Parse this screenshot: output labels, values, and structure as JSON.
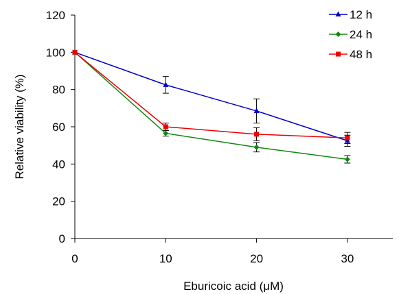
{
  "chart_data": {
    "type": "line",
    "title": "",
    "xlabel": "Eburicoic acid (μM)",
    "ylabel": "Relative viability (%)",
    "x": [
      0,
      10,
      20,
      30
    ],
    "xticks": [
      "0",
      "10",
      "20",
      "30"
    ],
    "xlim": [
      0,
      35
    ],
    "ylim": [
      0,
      120
    ],
    "yticks": [
      "0",
      "20",
      "40",
      "60",
      "80",
      "100",
      "120"
    ],
    "grid": false,
    "legend": "top-right",
    "error_bars": true,
    "series": [
      {
        "name": "12 h",
        "color": "#0000cc",
        "marker": "triangle",
        "values": [
          100,
          82.5,
          68.5,
          52.5
        ],
        "errors": [
          0,
          4.5,
          6.5,
          3
        ]
      },
      {
        "name": "24 h",
        "color": "#118811",
        "marker": "diamond",
        "values": [
          100,
          56.5,
          49,
          42.5
        ],
        "errors": [
          0,
          1.5,
          2.5,
          2
        ]
      },
      {
        "name": "48 h",
        "color": "#ee0000",
        "marker": "square",
        "values": [
          100,
          60,
          56,
          54
        ],
        "errors": [
          0,
          2,
          3.5,
          3
        ]
      }
    ]
  }
}
